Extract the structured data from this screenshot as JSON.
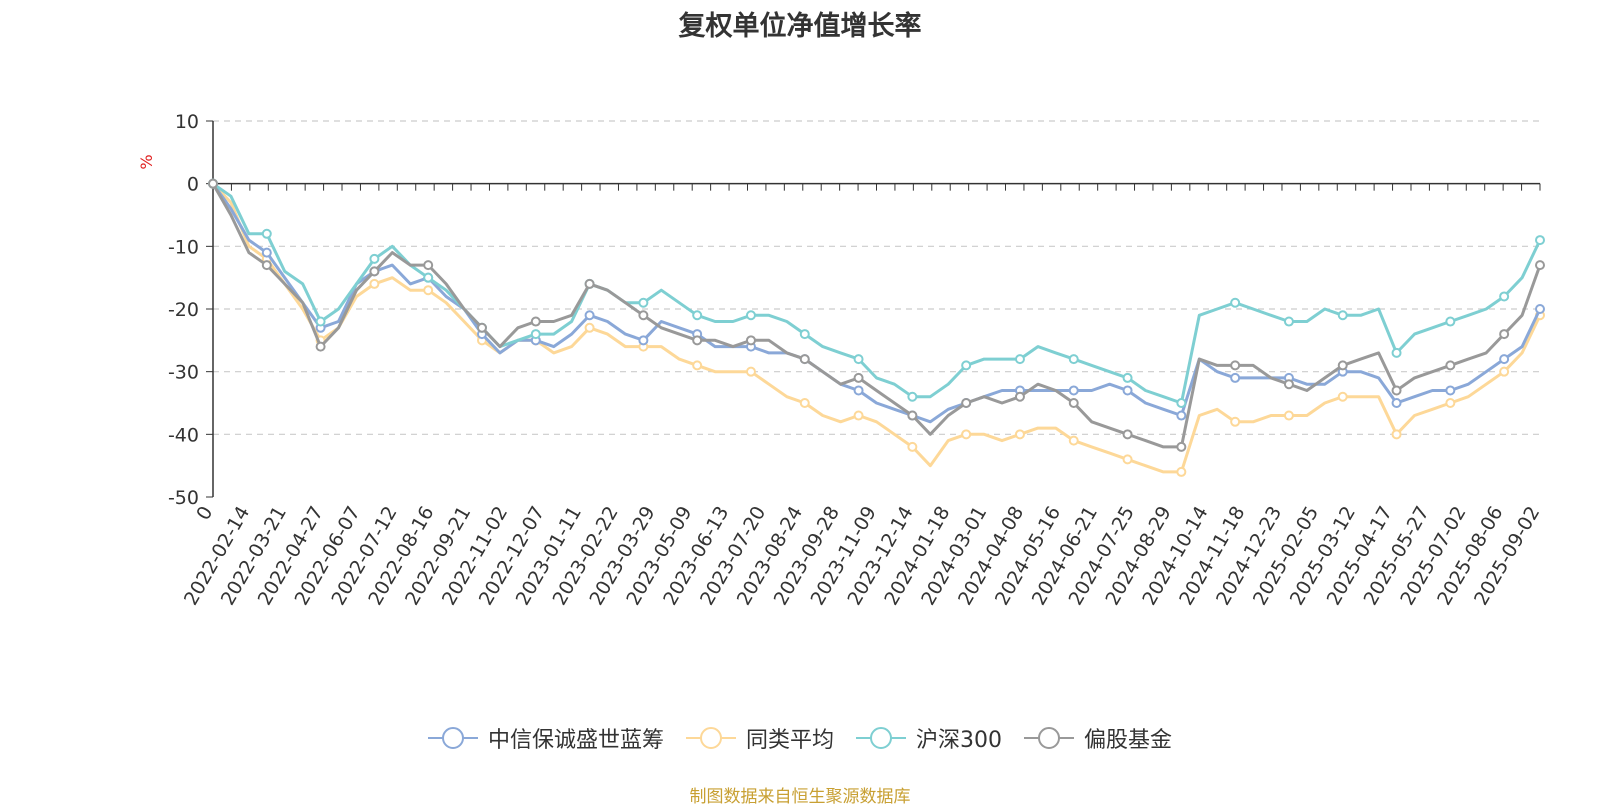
{
  "chart_data": {
    "type": "line",
    "title": "复权单位净值增长率",
    "ylabel": "%",
    "ylim": [
      -50,
      10
    ],
    "yticks": [
      10,
      0,
      -10,
      -20,
      -30,
      -40,
      -50
    ],
    "grid": true,
    "legend_position": "bottom",
    "x_labels": [
      "0",
      "2022-02-14",
      "2022-03-21",
      "2022-04-27",
      "2022-06-07",
      "2022-07-12",
      "2022-08-16",
      "2022-09-21",
      "2022-11-02",
      "2022-12-07",
      "2023-01-11",
      "2023-02-22",
      "2023-03-29",
      "2023-05-09",
      "2023-06-13",
      "2023-07-20",
      "2023-08-24",
      "2023-09-28",
      "2023-11-09",
      "2023-12-14",
      "2024-01-18",
      "2024-03-01",
      "2024-04-08",
      "2024-05-16",
      "2024-06-21",
      "2024-07-25",
      "2024-08-29",
      "2024-10-14",
      "2024-11-18",
      "2024-12-23",
      "2025-02-05",
      "2025-03-12",
      "2025-04-17",
      "2025-05-27",
      "2025-07-02",
      "2025-08-06",
      "2025-09-02"
    ],
    "x": [
      "2022-01-07",
      "2022-01-21",
      "2022-02-14",
      "2022-03-01",
      "2022-03-21",
      "2022-04-08",
      "2022-04-27",
      "2022-05-17",
      "2022-06-07",
      "2022-06-24",
      "2022-07-12",
      "2022-07-29",
      "2022-08-16",
      "2022-09-02",
      "2022-09-21",
      "2022-10-17",
      "2022-11-02",
      "2022-11-18",
      "2022-12-07",
      "2022-12-23",
      "2023-01-11",
      "2023-02-06",
      "2023-02-22",
      "2023-03-10",
      "2023-03-29",
      "2023-04-19",
      "2023-05-09",
      "2023-05-25",
      "2023-06-13",
      "2023-07-03",
      "2023-07-20",
      "2023-08-07",
      "2023-08-24",
      "2023-09-11",
      "2023-09-28",
      "2023-10-24",
      "2023-11-09",
      "2023-11-27",
      "2023-12-14",
      "2024-01-02",
      "2024-01-18",
      "2024-02-05",
      "2024-03-01",
      "2024-03-19",
      "2024-04-08",
      "2024-04-25",
      "2024-05-16",
      "2024-06-03",
      "2024-06-21",
      "2024-07-09",
      "2024-07-25",
      "2024-08-12",
      "2024-08-29",
      "2024-09-20",
      "2024-09-30",
      "2024-10-14",
      "2024-10-31",
      "2024-11-18",
      "2024-12-05",
      "2024-12-23",
      "2025-01-10",
      "2025-02-05",
      "2025-02-21",
      "2025-03-12",
      "2025-03-28",
      "2025-04-07",
      "2025-04-17",
      "2025-05-08",
      "2025-05-27",
      "2025-06-13",
      "2025-07-02",
      "2025-07-18",
      "2025-08-06",
      "2025-08-21",
      "2025-09-02"
    ],
    "series": [
      {
        "name": "中信保诚盛世蓝筹",
        "color": "#8aa8d8",
        "values": [
          0,
          -4,
          -9,
          -11,
          -15,
          -19,
          -23,
          -22,
          -16,
          -14,
          -13,
          -16,
          -15,
          -18,
          -20,
          -24,
          -27,
          -25,
          -25,
          -26,
          -24,
          -21,
          -22,
          -24,
          -25,
          -22,
          -23,
          -24,
          -26,
          -26,
          -26,
          -27,
          -27,
          -28,
          -30,
          -32,
          -33,
          -35,
          -36,
          -37,
          -38,
          -36,
          -35,
          -34,
          -33,
          -33,
          -33,
          -33,
          -33,
          -33,
          -32,
          -33,
          -35,
          -36,
          -37,
          -28,
          -30,
          -31,
          -31,
          -31,
          -31,
          -32,
          -32,
          -30,
          -30,
          -31,
          -35,
          -34,
          -33,
          -33,
          -32,
          -30,
          -28,
          -26,
          -20
        ]
      },
      {
        "name": "同类平均",
        "color": "#fdd898",
        "values": [
          0,
          -3,
          -10,
          -12,
          -16,
          -20,
          -25,
          -23,
          -18,
          -16,
          -15,
          -17,
          -17,
          -19,
          -22,
          -25,
          -27,
          -25,
          -25,
          -27,
          -26,
          -23,
          -24,
          -26,
          -26,
          -26,
          -28,
          -29,
          -30,
          -30,
          -30,
          -32,
          -34,
          -35,
          -37,
          -38,
          -37,
          -38,
          -40,
          -42,
          -45,
          -41,
          -40,
          -40,
          -41,
          -40,
          -39,
          -39,
          -41,
          -42,
          -43,
          -44,
          -45,
          -46,
          -46,
          -37,
          -36,
          -38,
          -38,
          -37,
          -37,
          -37,
          -35,
          -34,
          -34,
          -34,
          -40,
          -37,
          -36,
          -35,
          -34,
          -32,
          -30,
          -27,
          -21
        ]
      },
      {
        "name": "沪深300",
        "color": "#7ecfd2",
        "values": [
          0,
          -2,
          -8,
          -8,
          -14,
          -16,
          -22,
          -20,
          -16,
          -12,
          -10,
          -13,
          -15,
          -17,
          -20,
          -23,
          -26,
          -25,
          -24,
          -24,
          -22,
          -16,
          -17,
          -19,
          -19,
          -17,
          -19,
          -21,
          -22,
          -22,
          -21,
          -21,
          -22,
          -24,
          -26,
          -27,
          -28,
          -31,
          -32,
          -34,
          -34,
          -32,
          -29,
          -28,
          -28,
          -28,
          -26,
          -27,
          -28,
          -29,
          -30,
          -31,
          -33,
          -34,
          -35,
          -21,
          -20,
          -19,
          -20,
          -21,
          -22,
          -22,
          -20,
          -21,
          -21,
          -20,
          -27,
          -24,
          -23,
          -22,
          -21,
          -20,
          -18,
          -15,
          -9
        ]
      },
      {
        "name": "偏股基金",
        "color": "#999999",
        "values": [
          0,
          -5,
          -11,
          -13,
          -16,
          -19,
          -26,
          -23,
          -17,
          -14,
          -11,
          -13,
          -13,
          -16,
          -20,
          -23,
          -26,
          -23,
          -22,
          -22,
          -21,
          -16,
          -17,
          -19,
          -21,
          -23,
          -24,
          -25,
          -25,
          -26,
          -25,
          -25,
          -27,
          -28,
          -30,
          -32,
          -31,
          -33,
          -35,
          -37,
          -40,
          -37,
          -35,
          -34,
          -35,
          -34,
          -32,
          -33,
          -35,
          -38,
          -39,
          -40,
          -41,
          -42,
          -42,
          -28,
          -29,
          -29,
          -29,
          -31,
          -32,
          -33,
          -31,
          -29,
          -28,
          -27,
          -33,
          -31,
          -30,
          -29,
          -28,
          -27,
          -24,
          -21,
          -13
        ]
      }
    ]
  },
  "legend": {
    "items": [
      "中信保诚盛世蓝筹",
      "同类平均",
      "沪深300",
      "偏股基金"
    ]
  },
  "source_note": "制图数据来自恒生聚源数据库"
}
